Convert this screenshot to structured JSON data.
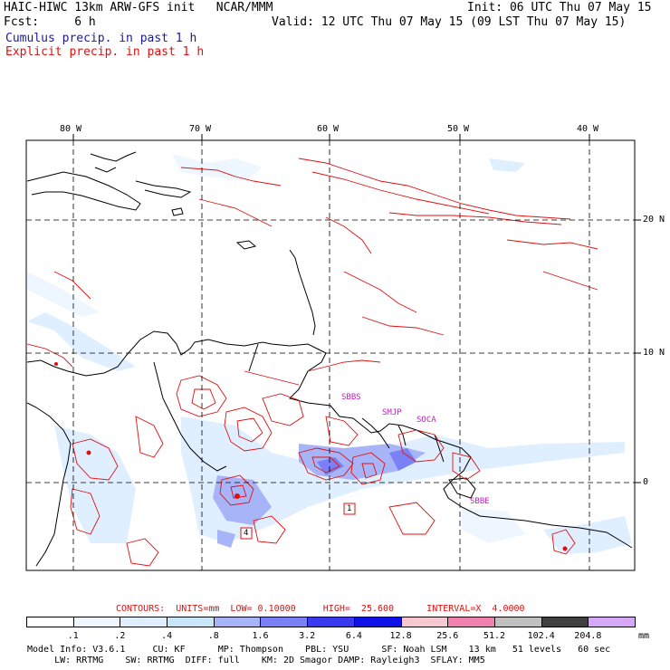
{
  "header": {
    "title": "HAIC-HIWC 13km ARW-GFS init   NCAR/MMM",
    "fcst": "Fcst:     6 h",
    "init": "Init: 06 UTC Thu 07 May 15",
    "valid": "Valid: 12 UTC Thu 07 May 15 (09 LST Thu 07 May 15)",
    "cumulus": "Cumulus precip. in past 1 h",
    "explicit": "Explicit precip. in past 1 h"
  },
  "map": {
    "lon_labels": [
      "80 W",
      "70 W",
      "60 W",
      "50 W",
      "40 W"
    ],
    "lat_labels": [
      "20 N",
      "10 N",
      "0"
    ],
    "stations": [
      "SBBS",
      "SMJP",
      "SOCA",
      "SBBE"
    ],
    "boxes": [
      "1",
      "4"
    ],
    "colors": {
      "cumulus": "#1a1aa0",
      "explicit": "#e01010",
      "stations": "#c020c0"
    }
  },
  "legend": {
    "contours": "CONTOURS:  UNITS=mm  LOW= 0.10000     HIGH=  25.600      INTERVAL=X  4.0000",
    "unit": "mm",
    "ticks": [
      ".1",
      ".2",
      ".4",
      ".8",
      "1.6",
      "3.2",
      "6.4",
      "12.8",
      "25.6",
      "51.2",
      "102.4",
      "204.8"
    ],
    "colors": [
      "#ffffff",
      "#eef7ff",
      "#dfefff",
      "#c8e6f8",
      "#a8b4f8",
      "#7a80f6",
      "#3a3af0",
      "#1010e8",
      "#f8c8d0",
      "#f080b0",
      "#c0c0c0",
      "#404040",
      "#d8a8f8"
    ]
  },
  "model_info": {
    "line1": "Model Info: V3.6.1     CU: KF      MP: Thompson    PBL: YSU      SF: Noah LSM    13 km   51 levels   60 sec",
    "line2": "     LW: RRTMG    SW: RRTMG  DIFF: full    KM: 2D Smagor DAMP: Rayleigh3  SFLAY: MM5"
  }
}
